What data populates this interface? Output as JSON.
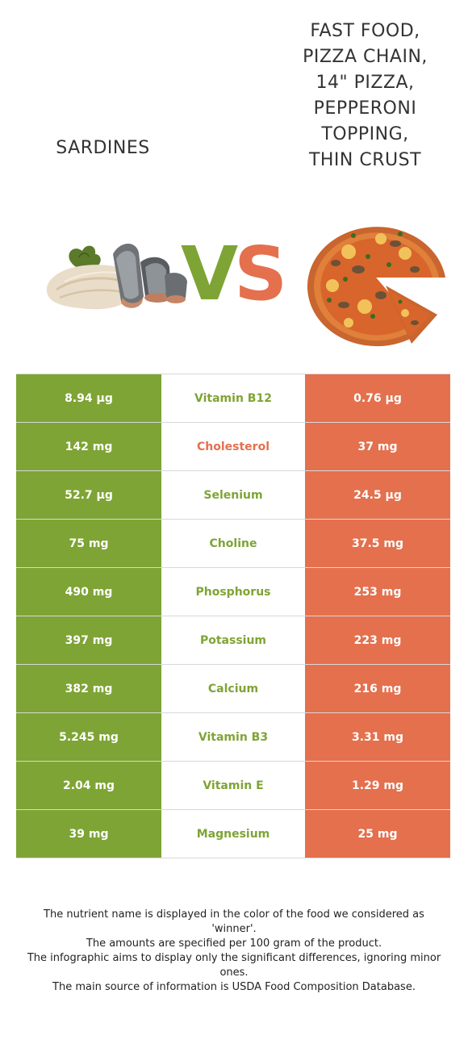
{
  "foods": {
    "left": {
      "name": "SARDINES",
      "color": "#7ea435",
      "image_icon": "sardines-fish-fillet-illustration"
    },
    "right": {
      "name": "FAST FOOD,\nPIZZA CHAIN,\n14\" PIZZA,\nPEPPERONI\nTOPPING,\nTHIN CRUST",
      "color": "#e4704e",
      "image_icon": "pepperoni-pizza-illustration"
    }
  },
  "vs": {
    "v_letter": "V",
    "s_letter": "S",
    "v_color": "#7ea435",
    "s_color": "#e4704e"
  },
  "nutrients": [
    {
      "name": "Vitamin B12",
      "left": "8.94 µg",
      "right": "0.76 µg",
      "winner": "left"
    },
    {
      "name": "Cholesterol",
      "left": "142 mg",
      "right": "37 mg",
      "winner": "right"
    },
    {
      "name": "Selenium",
      "left": "52.7 µg",
      "right": "24.5 µg",
      "winner": "left"
    },
    {
      "name": "Choline",
      "left": "75 mg",
      "right": "37.5 mg",
      "winner": "left"
    },
    {
      "name": "Phosphorus",
      "left": "490 mg",
      "right": "253 mg",
      "winner": "left"
    },
    {
      "name": "Potassium",
      "left": "397 mg",
      "right": "223 mg",
      "winner": "left"
    },
    {
      "name": "Calcium",
      "left": "382 mg",
      "right": "216 mg",
      "winner": "left"
    },
    {
      "name": "Vitamin B3",
      "left": "5.245 mg",
      "right": "3.31 mg",
      "winner": "left"
    },
    {
      "name": "Vitamin E",
      "left": "2.04 mg",
      "right": "1.29 mg",
      "winner": "left"
    },
    {
      "name": "Magnesium",
      "left": "39 mg",
      "right": "25 mg",
      "winner": "left"
    }
  ],
  "footnote": [
    "The nutrient name is displayed in the color of the food we considered as 'winner'.",
    "The amounts are specified per 100 gram of the product.",
    "The infographic aims to display only the significant differences, ignoring minor ones.",
    "The main source of information is USDA Food Composition Database."
  ]
}
